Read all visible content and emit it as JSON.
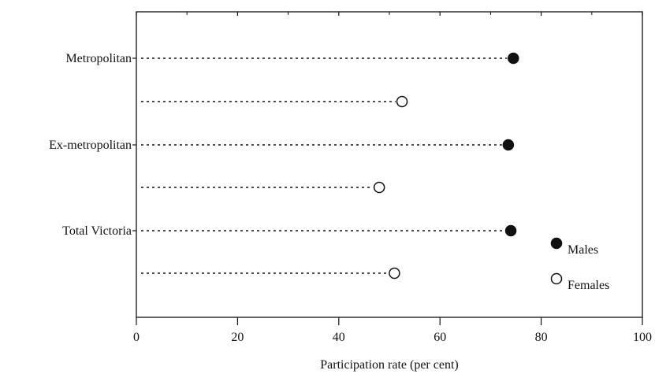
{
  "chart_data": {
    "type": "dot",
    "categories": [
      "Metropolitan",
      "Ex-metropolitan",
      "Total Victoria"
    ],
    "series": [
      {
        "name": "Males",
        "values": [
          74.5,
          73.5,
          74.0
        ],
        "marker": "filled"
      },
      {
        "name": "Females",
        "values": [
          52.5,
          48.0,
          51.0
        ],
        "marker": "open"
      }
    ],
    "xlabel": "Participation rate (per cent)",
    "ylabel": "",
    "xlim": [
      0,
      100
    ],
    "xticks": [
      0,
      20,
      40,
      60,
      80,
      100
    ],
    "grid": false,
    "legend_position": "bottom-right"
  },
  "colors": {
    "ink": "#111111",
    "background": "#ffffff"
  }
}
